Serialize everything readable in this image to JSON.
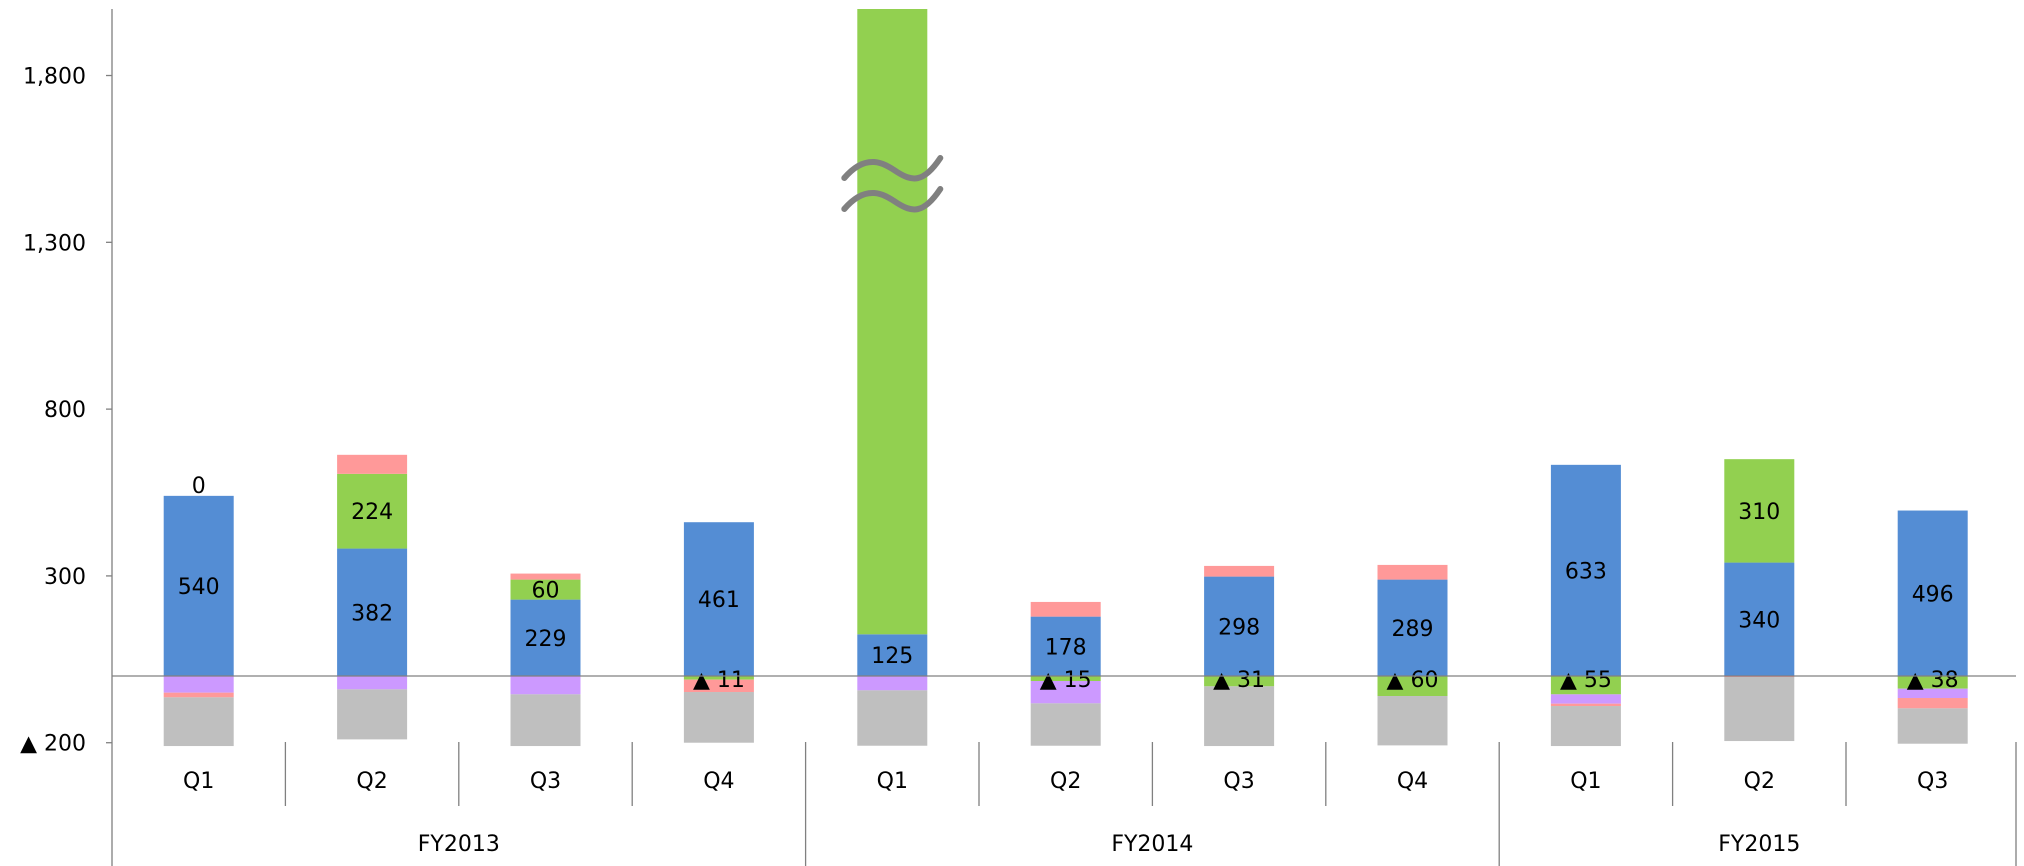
{
  "colors": {
    "blue": "#548dd4",
    "green": "#92d050",
    "pink": "#ff9999",
    "purple": "#cc99ff",
    "gray": "#bfbfbf",
    "axis": "#808080",
    "break_mark": "#808080"
  },
  "chart_data": {
    "type": "bar",
    "stacked": true,
    "y_axis": {
      "ticks": [
        {
          "value": -200,
          "label": "▲ 200"
        },
        {
          "value": 300,
          "label": "300"
        },
        {
          "value": 800,
          "label": "800"
        },
        {
          "value": 1300,
          "label": "1,300"
        },
        {
          "value": 1800,
          "label": "1,800"
        }
      ],
      "range": [
        -200,
        2000
      ]
    },
    "groups": [
      {
        "label": "FY2013",
        "quarters": [
          "Q1",
          "Q2",
          "Q3",
          "Q4"
        ]
      },
      {
        "label": "FY2014",
        "quarters": [
          "Q1",
          "Q2",
          "Q3",
          "Q4"
        ]
      },
      {
        "label": "FY2015",
        "quarters": [
          "Q1",
          "Q2",
          "Q3"
        ]
      }
    ],
    "axis_break": {
      "group": 1,
      "quarter": 0,
      "shape": "double-wave"
    },
    "bars": [
      {
        "group": 0,
        "quarter": "Q1",
        "pos": [
          {
            "color": "blue",
            "value": 540,
            "label": "540"
          },
          {
            "color": "green",
            "value": 0,
            "label": "0",
            "label_placement": "above"
          }
        ],
        "neg": [
          {
            "color": "purple",
            "value": -50
          },
          {
            "color": "pink",
            "value": -14
          },
          {
            "color": "gray",
            "value": -146
          }
        ]
      },
      {
        "group": 0,
        "quarter": "Q2",
        "pos": [
          {
            "color": "blue",
            "value": 382,
            "label": "382"
          },
          {
            "color": "green",
            "value": 224,
            "label": "224"
          },
          {
            "color": "pink",
            "value": 57
          }
        ],
        "neg": [
          {
            "color": "purple",
            "value": -40
          },
          {
            "color": "gray",
            "value": -150
          }
        ]
      },
      {
        "group": 0,
        "quarter": "Q3",
        "pos": [
          {
            "color": "blue",
            "value": 229,
            "label": "229"
          },
          {
            "color": "green",
            "value": 60,
            "label": "60"
          },
          {
            "color": "pink",
            "value": 18
          }
        ],
        "neg": [
          {
            "color": "purple",
            "value": -55
          },
          {
            "color": "gray",
            "value": -155
          }
        ]
      },
      {
        "group": 0,
        "quarter": "Q4",
        "pos": [
          {
            "color": "blue",
            "value": 461,
            "label": "461"
          }
        ],
        "neg": [
          {
            "color": "green",
            "value": -11,
            "label": "▲ 11"
          },
          {
            "color": "pink",
            "value": -37
          },
          {
            "color": "gray",
            "value": -152
          }
        ]
      },
      {
        "group": 1,
        "quarter": "Q1",
        "pos": [
          {
            "color": "blue",
            "value": 125,
            "label": "125"
          },
          {
            "color": "green",
            "value": 1875
          }
        ],
        "neg": [
          {
            "color": "purple",
            "value": -43
          },
          {
            "color": "gray",
            "value": -166
          }
        ]
      },
      {
        "group": 1,
        "quarter": "Q2",
        "pos": [
          {
            "color": "blue",
            "value": 178,
            "label": "178"
          },
          {
            "color": "pink",
            "value": 44
          }
        ],
        "neg": [
          {
            "color": "green",
            "value": -15,
            "label": "▲ 15"
          },
          {
            "color": "purple",
            "value": -67
          },
          {
            "color": "gray",
            "value": -127
          }
        ]
      },
      {
        "group": 1,
        "quarter": "Q3",
        "pos": [
          {
            "color": "blue",
            "value": 298,
            "label": "298"
          },
          {
            "color": "pink",
            "value": 32
          }
        ],
        "neg": [
          {
            "color": "green",
            "value": -31,
            "label": "▲ 31"
          },
          {
            "color": "gray",
            "value": -179
          }
        ]
      },
      {
        "group": 1,
        "quarter": "Q4",
        "pos": [
          {
            "color": "blue",
            "value": 289,
            "label": "289"
          },
          {
            "color": "pink",
            "value": 44
          }
        ],
        "neg": [
          {
            "color": "green",
            "value": -60,
            "label": "▲ 60"
          },
          {
            "color": "gray",
            "value": -148
          }
        ]
      },
      {
        "group": 2,
        "quarter": "Q1",
        "pos": [
          {
            "color": "blue",
            "value": 633,
            "label": "633"
          }
        ],
        "neg": [
          {
            "color": "green",
            "value": -55,
            "label": "▲ 55"
          },
          {
            "color": "purple",
            "value": -28
          },
          {
            "color": "pink",
            "value": -7
          },
          {
            "color": "gray",
            "value": -120
          }
        ]
      },
      {
        "group": 2,
        "quarter": "Q2",
        "pos": [
          {
            "color": "blue",
            "value": 340,
            "label": "340"
          },
          {
            "color": "green",
            "value": 310,
            "label": "310"
          }
        ],
        "neg": [
          {
            "color": "pink",
            "value": -3
          },
          {
            "color": "gray",
            "value": -192
          }
        ]
      },
      {
        "group": 2,
        "quarter": "Q3",
        "pos": [
          {
            "color": "blue",
            "value": 496,
            "label": "496"
          }
        ],
        "neg": [
          {
            "color": "green",
            "value": -38,
            "label": "▲ 38"
          },
          {
            "color": "purple",
            "value": -28
          },
          {
            "color": "pink",
            "value": -31
          },
          {
            "color": "gray",
            "value": -106
          }
        ]
      }
    ]
  }
}
